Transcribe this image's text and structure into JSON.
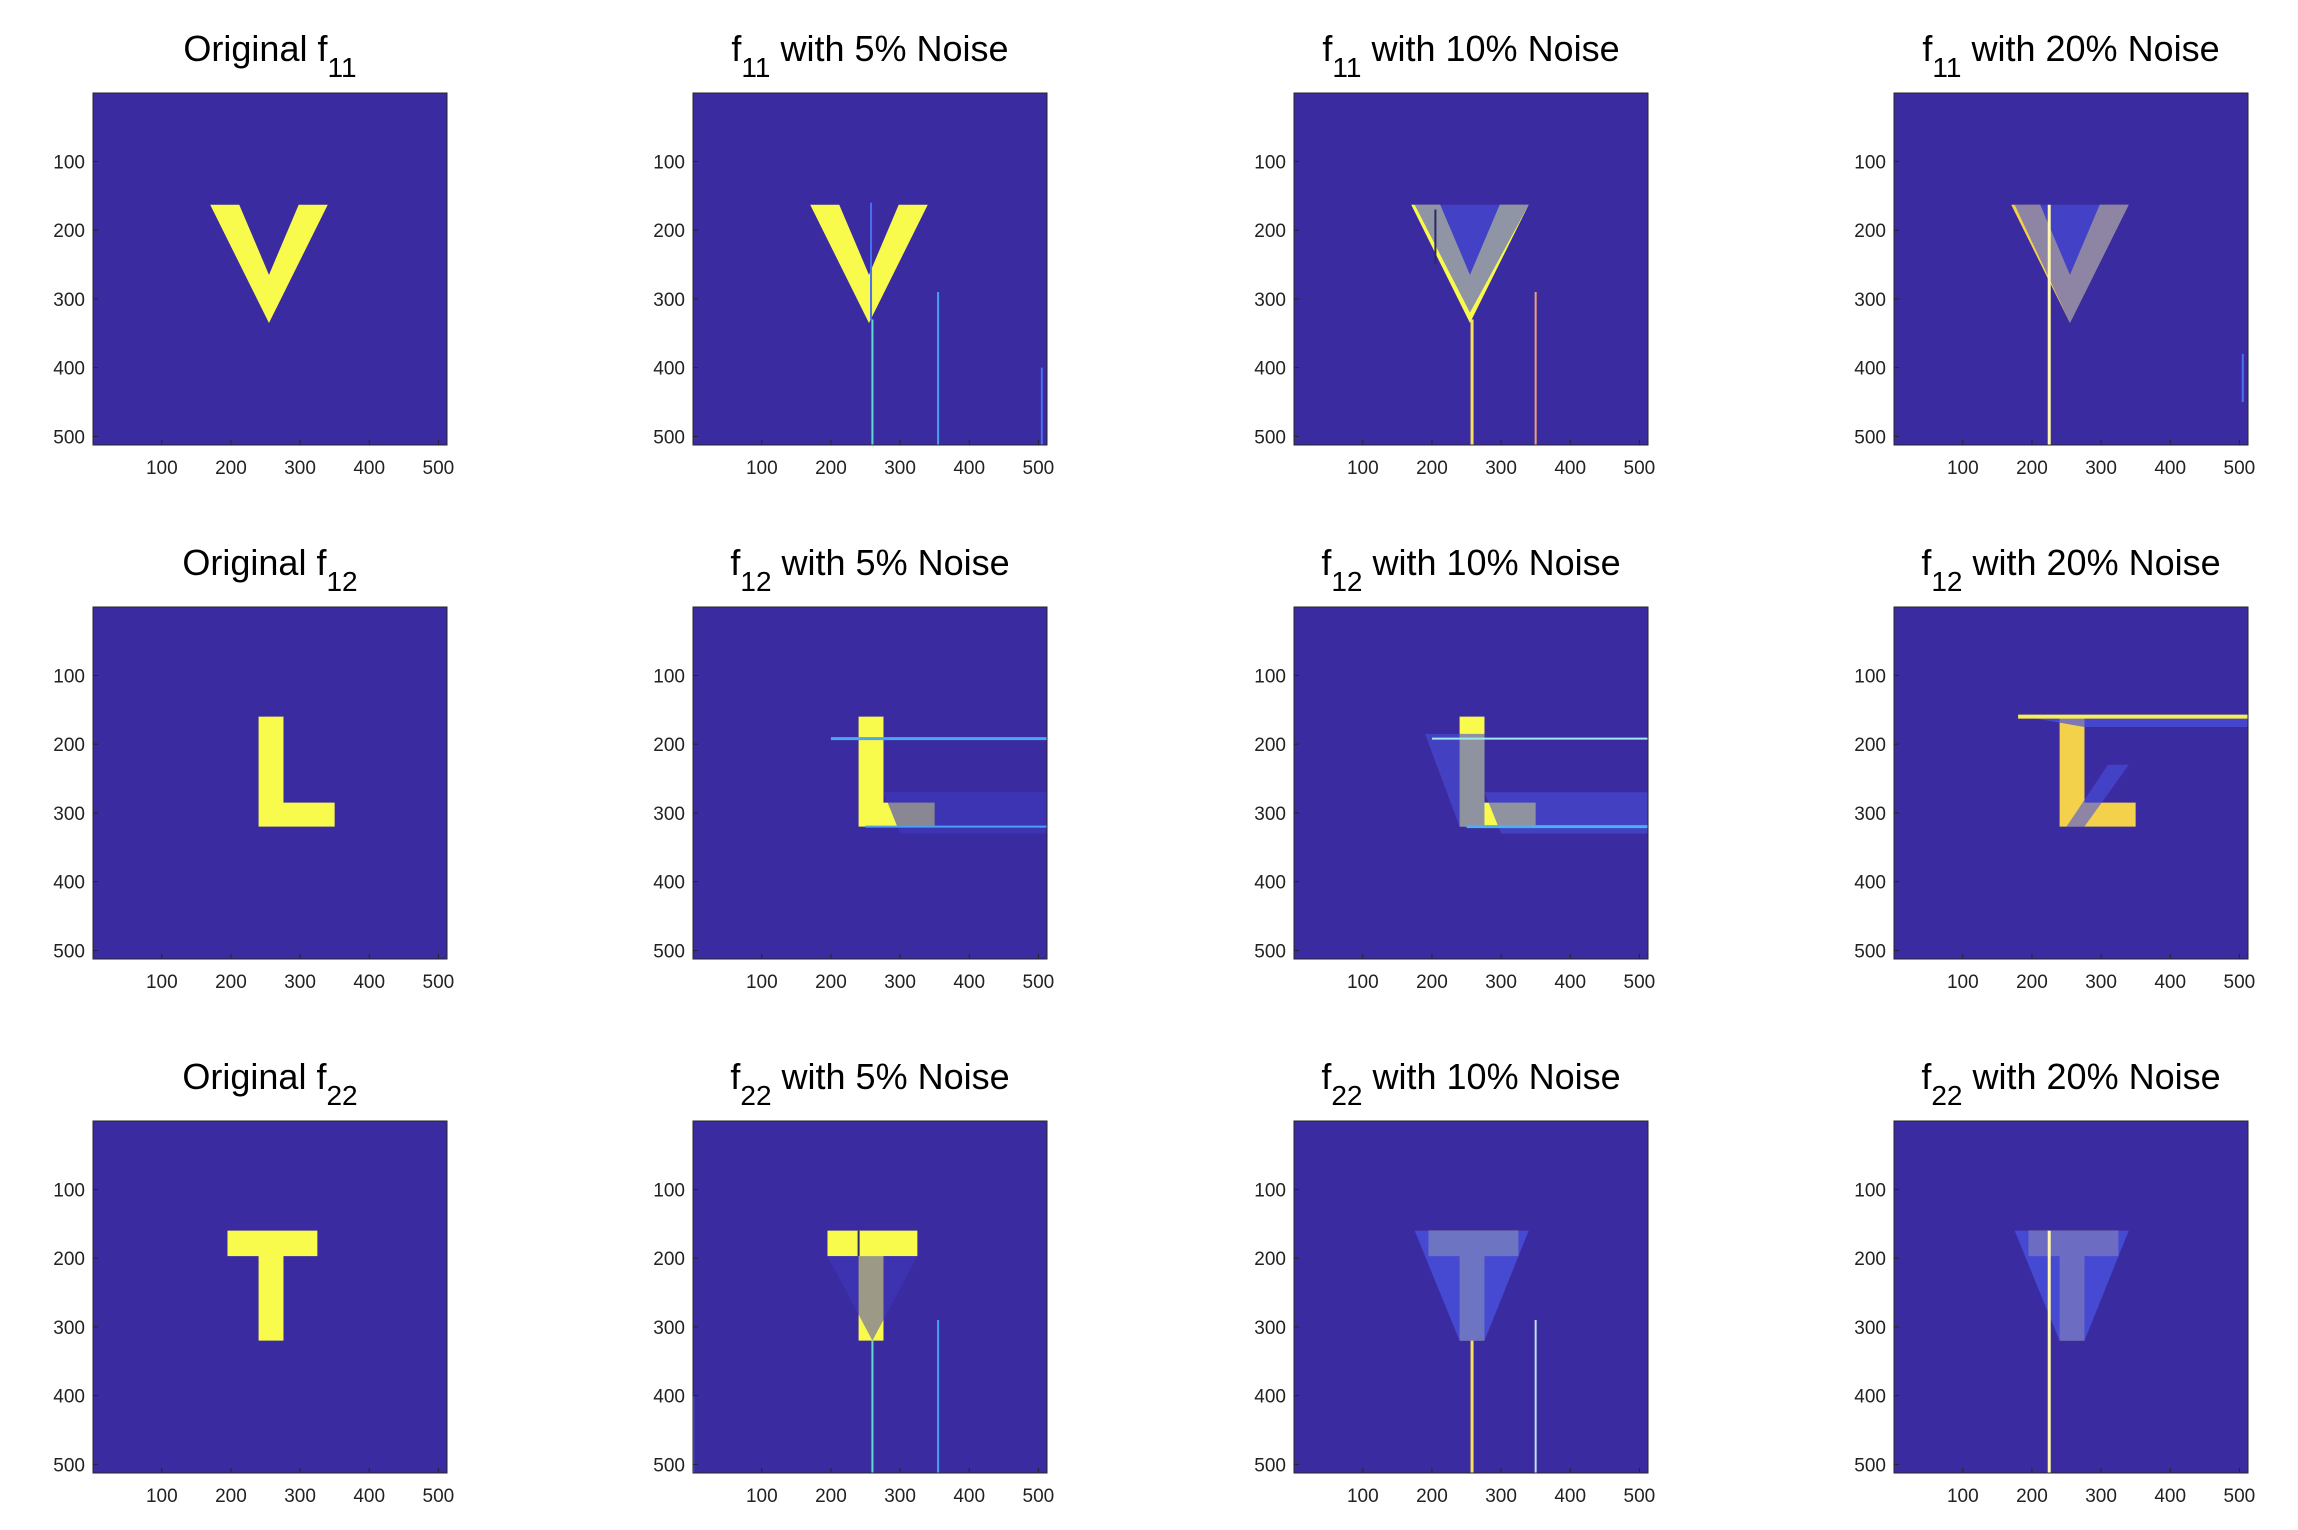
{
  "chart_data": [
    {
      "type": "image",
      "title": [
        "Original f",
        "11"
      ],
      "xlim": [
        0.5,
        512.5
      ],
      "ylim": [
        0.5,
        512.5
      ],
      "y_direction": "reverse",
      "xticks": [
        100,
        200,
        300,
        400,
        500
      ],
      "yticks": [
        100,
        200,
        300,
        400,
        500
      ],
      "background_color": "#3b2ba0",
      "shape_color": "#f8fa4c"
    },
    {
      "type": "image",
      "title": [
        "f",
        "11",
        " with 5% Noise"
      ],
      "xlim": [
        0.5,
        512.5
      ],
      "ylim": [
        0.5,
        512.5
      ],
      "y_direction": "reverse",
      "xticks": [
        100,
        200,
        300,
        400,
        500
      ],
      "yticks": [
        100,
        200,
        300,
        400,
        500
      ],
      "background_color": "#3b2ba0",
      "shape_color": "#f8fa4c"
    },
    {
      "type": "image",
      "title": [
        "f",
        "11",
        " with 10% Noise"
      ],
      "xlim": [
        0.5,
        512.5
      ],
      "ylim": [
        0.5,
        512.5
      ],
      "y_direction": "reverse",
      "xticks": [
        100,
        200,
        300,
        400,
        500
      ],
      "yticks": [
        100,
        200,
        300,
        400,
        500
      ],
      "background_color": "#3b2ba0",
      "shape_color": "#f8fa4c"
    },
    {
      "type": "image",
      "title": [
        "f",
        "11",
        " with 20% Noise"
      ],
      "xlim": [
        0.5,
        512.5
      ],
      "ylim": [
        0.5,
        512.5
      ],
      "y_direction": "reverse",
      "xticks": [
        100,
        200,
        300,
        400,
        500
      ],
      "yticks": [
        100,
        200,
        300,
        400,
        500
      ],
      "background_color": "#3b2ba0",
      "shape_color": "#f3d14a"
    },
    {
      "type": "image",
      "title": [
        "Original f",
        "12"
      ],
      "xlim": [
        0.5,
        512.5
      ],
      "ylim": [
        0.5,
        512.5
      ],
      "y_direction": "reverse",
      "xticks": [
        100,
        200,
        300,
        400,
        500
      ],
      "yticks": [
        100,
        200,
        300,
        400,
        500
      ],
      "background_color": "#3b2ba0",
      "shape_color": "#f8fa4c"
    },
    {
      "type": "image",
      "title": [
        "f",
        "12",
        " with 5% Noise"
      ],
      "xlim": [
        0.5,
        512.5
      ],
      "ylim": [
        0.5,
        512.5
      ],
      "y_direction": "reverse",
      "xticks": [
        100,
        200,
        300,
        400,
        500
      ],
      "yticks": [
        100,
        200,
        300,
        400,
        500
      ],
      "background_color": "#3b2ba0",
      "shape_color": "#f8fa4c"
    },
    {
      "type": "image",
      "title": [
        "f",
        "12",
        " with 10% Noise"
      ],
      "xlim": [
        0.5,
        512.5
      ],
      "ylim": [
        0.5,
        512.5
      ],
      "y_direction": "reverse",
      "xticks": [
        100,
        200,
        300,
        400,
        500
      ],
      "yticks": [
        100,
        200,
        300,
        400,
        500
      ],
      "background_color": "#3b2ba0",
      "shape_color": "#f8fa4c"
    },
    {
      "type": "image",
      "title": [
        "f",
        "12",
        " with 20% Noise"
      ],
      "xlim": [
        0.5,
        512.5
      ],
      "ylim": [
        0.5,
        512.5
      ],
      "y_direction": "reverse",
      "xticks": [
        100,
        200,
        300,
        400,
        500
      ],
      "yticks": [
        100,
        200,
        300,
        400,
        500
      ],
      "background_color": "#3b2ba0",
      "shape_color": "#f3d14a"
    },
    {
      "type": "image",
      "title": [
        "Original f",
        "22"
      ],
      "xlim": [
        0.5,
        512.5
      ],
      "ylim": [
        0.5,
        512.5
      ],
      "y_direction": "reverse",
      "xticks": [
        100,
        200,
        300,
        400,
        500
      ],
      "yticks": [
        100,
        200,
        300,
        400,
        500
      ],
      "background_color": "#3b2ba0",
      "shape_color": "#f8fa4c"
    },
    {
      "type": "image",
      "title": [
        "f",
        "22",
        " with 5% Noise"
      ],
      "xlim": [
        0.5,
        512.5
      ],
      "ylim": [
        0.5,
        512.5
      ],
      "y_direction": "reverse",
      "xticks": [
        100,
        200,
        300,
        400,
        500
      ],
      "yticks": [
        100,
        200,
        300,
        400,
        500
      ],
      "background_color": "#3b2ba0",
      "shape_color": "#f8fa4c"
    },
    {
      "type": "image",
      "title": [
        "f",
        "22",
        " with 10% Noise"
      ],
      "xlim": [
        0.5,
        512.5
      ],
      "ylim": [
        0.5,
        512.5
      ],
      "y_direction": "reverse",
      "xticks": [
        100,
        200,
        300,
        400,
        500
      ],
      "yticks": [
        100,
        200,
        300,
        400,
        500
      ],
      "background_color": "#3b2ba0",
      "shape_color": "#f8fa4c"
    },
    {
      "type": "image",
      "title": [
        "f",
        "22",
        " with 20% Noise"
      ],
      "xlim": [
        0.5,
        512.5
      ],
      "ylim": [
        0.5,
        512.5
      ],
      "y_direction": "reverse",
      "xticks": [
        100,
        200,
        300,
        400,
        500
      ],
      "yticks": [
        100,
        200,
        300,
        400,
        500
      ],
      "background_color": "#3b2ba0",
      "shape_color": "#f3d14a"
    }
  ]
}
